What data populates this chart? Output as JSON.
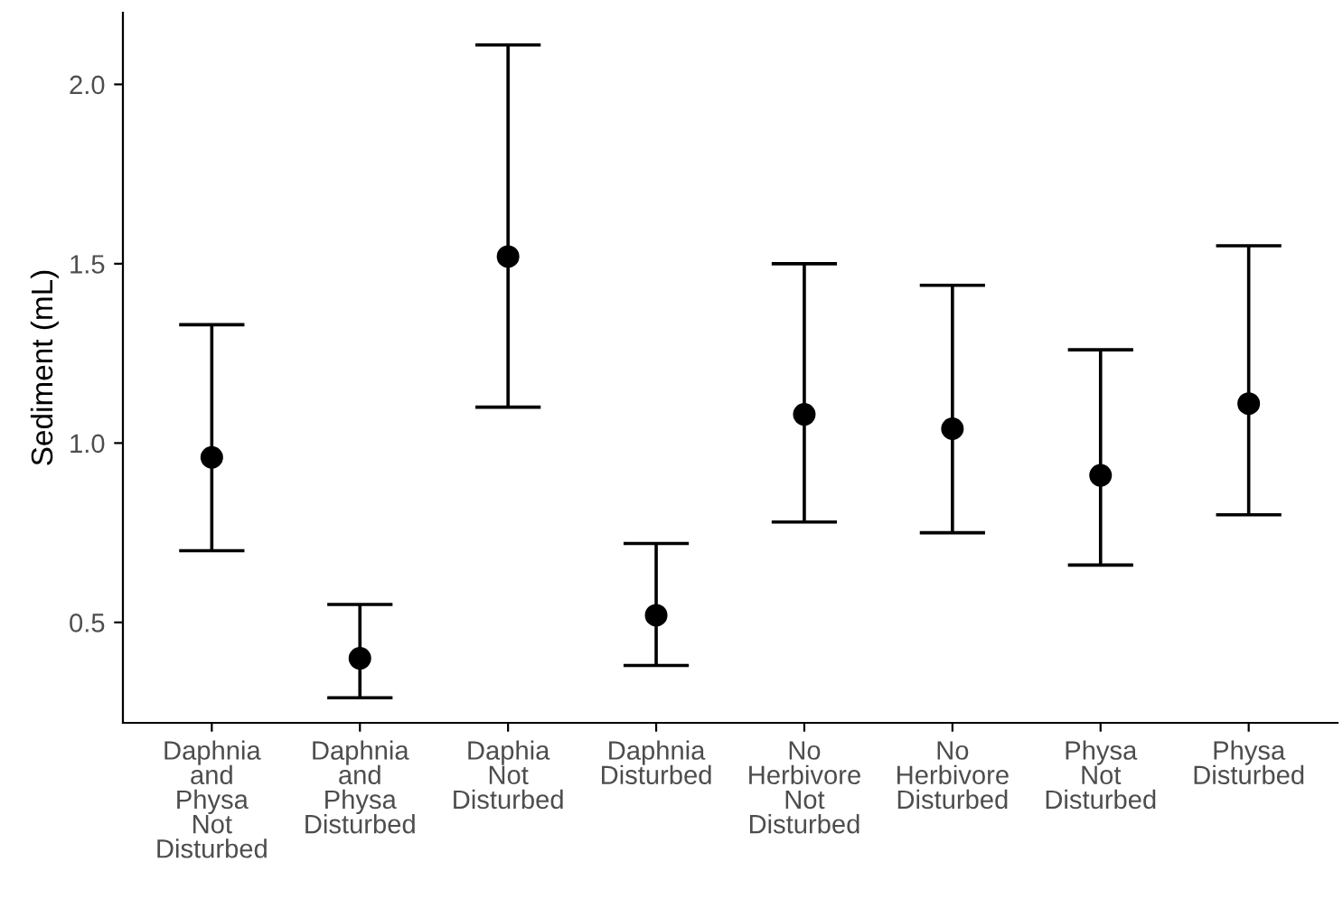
{
  "chart_data": {
    "type": "scatter",
    "ylabel": "Sediment (mL)",
    "categories": [
      "Daphnia\nand\nPhysa\nNot\nDisturbed",
      "Daphnia\nand\nPhysa\nDisturbed",
      "Daphia\nNot\nDisturbed",
      "Daphnia\nDisturbed",
      "No\nHerbivore\nNot\nDisturbed",
      "No\nHerbivore\nDisturbed",
      "Physa\nNot\nDisturbed",
      "Physa\nDisturbed"
    ],
    "values": [
      0.96,
      0.4,
      1.52,
      0.52,
      1.08,
      1.04,
      0.91,
      1.11
    ],
    "errors": [
      [
        0.7,
        1.33
      ],
      [
        0.29,
        0.55
      ],
      [
        1.1,
        2.11
      ],
      [
        0.38,
        0.72
      ],
      [
        0.78,
        1.5
      ],
      [
        0.75,
        1.44
      ],
      [
        0.66,
        1.26
      ],
      [
        0.8,
        1.55
      ]
    ],
    "color": "#000000",
    "marker": "circle",
    "grid": false,
    "legend": false,
    "ylim": [
      0.22,
      2.2
    ],
    "yticks": [
      {
        "value": 0.5,
        "label": "0.5"
      },
      {
        "value": 1.0,
        "label": "1.0"
      },
      {
        "value": 1.5,
        "label": "1.5"
      },
      {
        "value": 2.0,
        "label": "2.0"
      }
    ]
  }
}
